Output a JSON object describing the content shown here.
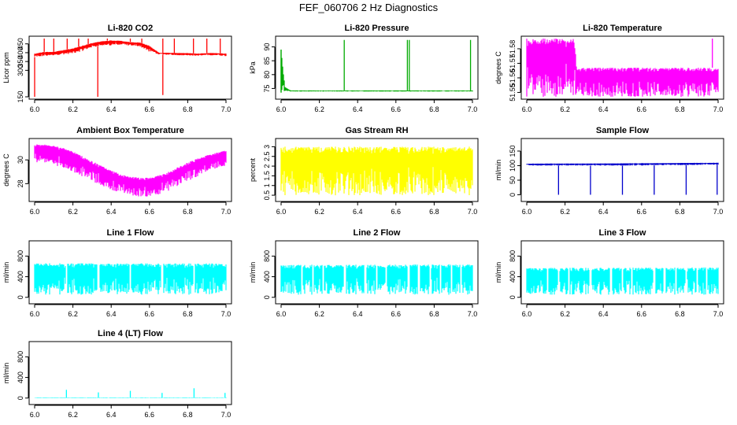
{
  "figure": {
    "title": "FEF_060706  2 Hz Diagnostics"
  },
  "chart_data": [
    {
      "type": "line",
      "title": "Li-820 CO2",
      "ylabel": "Licor ppm",
      "xticks": [
        "6.0",
        "6.2",
        "6.4",
        "6.6",
        "6.8",
        "7.0"
      ],
      "yticks": [
        150,
        300,
        350,
        400,
        450
      ],
      "xlim": [
        6.0,
        7.0
      ],
      "ylim": [
        150,
        480
      ],
      "color": "#ff0000",
      "series": [
        {
          "x": [
            6.0,
            6.05,
            6.1,
            6.15,
            6.2,
            6.25,
            6.3,
            6.35,
            6.4,
            6.45,
            6.5,
            6.55,
            6.6,
            6.65,
            6.7,
            6.75,
            6.8,
            6.85,
            6.9,
            6.95,
            7.0
          ],
          "low": [
            375,
            380,
            385,
            390,
            395,
            410,
            430,
            440,
            440,
            445,
            440,
            435,
            405,
            390,
            388,
            385,
            385,
            382,
            385,
            385,
            380
          ],
          "high": [
            395,
            405,
            405,
            415,
            425,
            440,
            455,
            465,
            470,
            468,
            460,
            458,
            440,
            400,
            400,
            398,
            398,
            395,
            398,
            398,
            395
          ]
        }
      ],
      "spikes": [
        {
          "x": 6.0,
          "value": 150
        },
        {
          "x": 6.05,
          "value": 480
        },
        {
          "x": 6.1,
          "value": 480
        },
        {
          "x": 6.17,
          "value": 480
        },
        {
          "x": 6.23,
          "value": 480
        },
        {
          "x": 6.28,
          "value": 480
        },
        {
          "x": 6.33,
          "value": 150
        },
        {
          "x": 6.38,
          "value": 480
        },
        {
          "x": 6.5,
          "value": 480
        },
        {
          "x": 6.56,
          "value": 480
        },
        {
          "x": 6.67,
          "value": 480
        },
        {
          "x": 6.67,
          "value": 160
        },
        {
          "x": 6.73,
          "value": 480
        },
        {
          "x": 6.83,
          "value": 480
        },
        {
          "x": 6.9,
          "value": 480
        },
        {
          "x": 6.97,
          "value": 480
        }
      ]
    },
    {
      "type": "line",
      "title": "Li-820 Pressure",
      "ylabel": "kPa",
      "xticks": [
        "6.0",
        "6.2",
        "6.4",
        "6.6",
        "6.8",
        "7.0"
      ],
      "yticks": [
        75,
        80,
        85,
        90
      ],
      "xlim": [
        6.0,
        7.0
      ],
      "ylim": [
        72,
        93
      ],
      "color": "#00aa00",
      "series": [
        {
          "x": [
            6.0,
            6.02,
            6.05,
            6.1,
            6.2,
            6.3,
            6.4,
            6.5,
            6.6,
            6.7,
            6.8,
            6.9,
            7.0
          ],
          "low": [
            73.5,
            74.2,
            73.9,
            73.9,
            73.9,
            73.9,
            73.9,
            73.9,
            73.9,
            73.9,
            73.9,
            73.9,
            73.9
          ],
          "high": [
            89,
            75.5,
            74.3,
            74.3,
            74.3,
            74.3,
            74.3,
            74.3,
            74.3,
            74.3,
            74.3,
            74.3,
            74.3
          ]
        }
      ],
      "spikes": [
        {
          "x": 6.0,
          "value": 89
        },
        {
          "x": 6.33,
          "value": 92.5
        },
        {
          "x": 6.66,
          "value": 92.5
        },
        {
          "x": 6.67,
          "value": 92.5
        },
        {
          "x": 6.99,
          "value": 92.5
        }
      ]
    },
    {
      "type": "line",
      "title": "Li-820 Temperature",
      "ylabel": "degrees C",
      "xticks": [
        "6.0",
        "6.2",
        "6.4",
        "6.6",
        "6.8",
        "7.0"
      ],
      "yticks": [
        51.55,
        51.56,
        51.57,
        51.58
      ],
      "xlim": [
        6.0,
        7.0
      ],
      "ylim": [
        51.547,
        51.587
      ],
      "color": "#ff00ff",
      "series": [
        {
          "x": [
            6.0,
            6.25,
            6.26,
            7.0
          ],
          "low": [
            51.547,
            51.547,
            51.547,
            51.547
          ],
          "high": [
            51.587,
            51.587,
            51.567,
            51.567
          ]
        }
      ],
      "spikes": [
        {
          "x": 6.97,
          "value": 51.587
        }
      ]
    },
    {
      "type": "line",
      "title": "Ambient Box Temperature",
      "ylabel": "degrees C",
      "xticks": [
        "6.0",
        "6.2",
        "6.4",
        "6.6",
        "6.8",
        "7.0"
      ],
      "yticks": [
        28,
        30
      ],
      "xlim": [
        6.0,
        7.0
      ],
      "ylim": [
        26.7,
        31.6
      ],
      "color": "#ff00ff",
      "series": [
        {
          "x": [
            6.0,
            6.05,
            6.1,
            6.15,
            6.2,
            6.25,
            6.3,
            6.35,
            6.4,
            6.45,
            6.5,
            6.55,
            6.6,
            6.65,
            6.7,
            6.75,
            6.8,
            6.85,
            6.9,
            6.95,
            7.0
          ],
          "low": [
            29.8,
            29.8,
            29.6,
            29.3,
            29.0,
            28.6,
            28.2,
            27.8,
            27.5,
            27.2,
            27.0,
            26.9,
            26.9,
            27.1,
            27.4,
            27.8,
            28.2,
            28.6,
            29.0,
            29.3,
            29.5
          ],
          "high": [
            31.3,
            31.3,
            31.2,
            31.0,
            30.7,
            30.3,
            29.9,
            29.5,
            29.1,
            28.8,
            28.6,
            28.5,
            28.5,
            28.7,
            29.0,
            29.4,
            29.8,
            30.1,
            30.4,
            30.6,
            30.8
          ]
        }
      ]
    },
    {
      "type": "line",
      "title": "Gas Stream RH",
      "ylabel": "percent",
      "xticks": [
        "6.0",
        "6.2",
        "6.4",
        "6.6",
        "6.8",
        "7.0"
      ],
      "yticks": [
        0.5,
        1.0,
        1.5,
        2.0,
        2.5,
        3.0
      ],
      "xlim": [
        6.0,
        7.0
      ],
      "ylim": [
        0.3,
        3.3
      ],
      "color": "#ffff00",
      "series": [
        {
          "x": [
            6.0,
            7.0
          ],
          "low": [
            0.5,
            0.5
          ],
          "high": [
            3.0,
            3.0
          ]
        }
      ]
    },
    {
      "type": "line",
      "title": "Sample Flow",
      "ylabel": "ml/min",
      "xticks": [
        "6.0",
        "6.2",
        "6.4",
        "6.6",
        "6.8",
        "7.0"
      ],
      "yticks": [
        0,
        50,
        100,
        150
      ],
      "xlim": [
        6.0,
        7.0
      ],
      "ylim": [
        -15,
        185
      ],
      "color": "#0000cc",
      "series": [
        {
          "x": [
            6.0,
            6.5,
            7.0
          ],
          "low": [
            100,
            100,
            103
          ],
          "high": [
            107,
            108,
            110
          ]
        }
      ],
      "spikes": [
        {
          "x": 6.166,
          "value": 0
        },
        {
          "x": 6.333,
          "value": 0
        },
        {
          "x": 6.5,
          "value": 0
        },
        {
          "x": 6.666,
          "value": 0
        },
        {
          "x": 6.833,
          "value": 0
        },
        {
          "x": 6.995,
          "value": 0
        }
      ]
    },
    {
      "type": "line",
      "title": "Line 1 Flow",
      "ylabel": "ml/min",
      "xticks": [
        "6.0",
        "6.2",
        "6.4",
        "6.6",
        "6.8",
        "7.0"
      ],
      "yticks": [
        0,
        400,
        800
      ],
      "xlim": [
        6.0,
        7.0
      ],
      "ylim": [
        -80,
        1050
      ],
      "color": "#00ffff",
      "series": [
        {
          "x": [
            6.0,
            7.0
          ],
          "low": [
            50,
            50
          ],
          "high": [
            660,
            660
          ]
        }
      ],
      "gaps": [
        6.166,
        6.333,
        6.5,
        6.666,
        6.833
      ]
    },
    {
      "type": "line",
      "title": "Line 2 Flow",
      "ylabel": "ml/min",
      "xticks": [
        "6.0",
        "6.2",
        "6.4",
        "6.6",
        "6.8",
        "7.0"
      ],
      "yticks": [
        0,
        400,
        800
      ],
      "xlim": [
        6.0,
        7.0
      ],
      "ylim": [
        -80,
        1050
      ],
      "color": "#00ffff",
      "series": [
        {
          "x": [
            6.0,
            7.0
          ],
          "low": [
            50,
            50
          ],
          "high": [
            630,
            640
          ]
        }
      ],
      "gaps": [
        6.11,
        6.166,
        6.22,
        6.333,
        6.44,
        6.5,
        6.55,
        6.666,
        6.72,
        6.78,
        6.833,
        6.89,
        6.94
      ]
    },
    {
      "type": "line",
      "title": "Line 3 Flow",
      "ylabel": "ml/min",
      "xticks": [
        "6.0",
        "6.2",
        "6.4",
        "6.6",
        "6.8",
        "7.0"
      ],
      "yticks": [
        0,
        400,
        800
      ],
      "xlim": [
        6.0,
        7.0
      ],
      "ylim": [
        -80,
        1050
      ],
      "color": "#00ffff",
      "series": [
        {
          "x": [
            6.0,
            7.0
          ],
          "low": [
            50,
            50
          ],
          "high": [
            570,
            580
          ]
        }
      ],
      "gaps": [
        6.11,
        6.166,
        6.22,
        6.333,
        6.44,
        6.5,
        6.55,
        6.666,
        6.72,
        6.78,
        6.833,
        6.89,
        6.94
      ]
    },
    {
      "type": "line",
      "title": "Line 4 (LT) Flow",
      "ylabel": "ml/min",
      "xticks": [
        "6.0",
        "6.2",
        "6.4",
        "6.6",
        "6.8",
        "7.0"
      ],
      "yticks": [
        0,
        400,
        800
      ],
      "xlim": [
        6.0,
        7.0
      ],
      "ylim": [
        -80,
        1050
      ],
      "color": "#00ffff",
      "series": [
        {
          "x": [
            6.0,
            7.0
          ],
          "low": [
            0,
            0
          ],
          "high": [
            10,
            10
          ]
        }
      ],
      "spikes": [
        {
          "x": 6.166,
          "value": 160
        },
        {
          "x": 6.333,
          "value": 110
        },
        {
          "x": 6.5,
          "value": 140
        },
        {
          "x": 6.666,
          "value": 100
        },
        {
          "x": 6.833,
          "value": 190
        },
        {
          "x": 6.995,
          "value": 100
        }
      ]
    }
  ]
}
